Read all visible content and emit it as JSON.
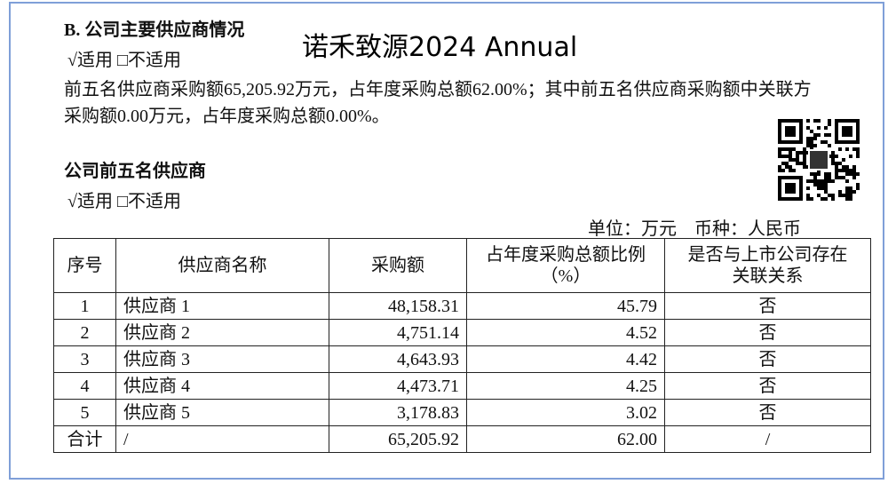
{
  "header": {
    "section_title": "B. 公司主要供应商情况",
    "overlay_title": "诺禾致源2024 Annual"
  },
  "applicability_1": "√适用 □不适用",
  "paragraph": "前五名供应商采购额65,205.92万元，占年度采购总额62.00%；其中前五名供应商采购额中关联方采购额0.00万元，占年度采购总额0.00%。",
  "subsection_title": "公司前五名供应商",
  "applicability_2": "√适用 □不适用",
  "unit_note": "单位：万元　币种：人民币",
  "table": {
    "columns": [
      "序号",
      "供应商名称",
      "采购额",
      "占年度采购总额比例（%）",
      "是否与上市公司存在关联关系"
    ],
    "rows": [
      [
        "1",
        "供应商 1",
        "48,158.31",
        "45.79",
        "否"
      ],
      [
        "2",
        "供应商 2",
        "4,751.14",
        "4.52",
        "否"
      ],
      [
        "3",
        "供应商 3",
        "4,643.93",
        "4.42",
        "否"
      ],
      [
        "4",
        "供应商 4",
        "4,473.71",
        "4.25",
        "否"
      ],
      [
        "5",
        "供应商 5",
        "3,178.83",
        "3.02",
        "否"
      ],
      [
        "合计",
        "/",
        "65,205.92",
        "62.00",
        "/"
      ]
    ]
  }
}
